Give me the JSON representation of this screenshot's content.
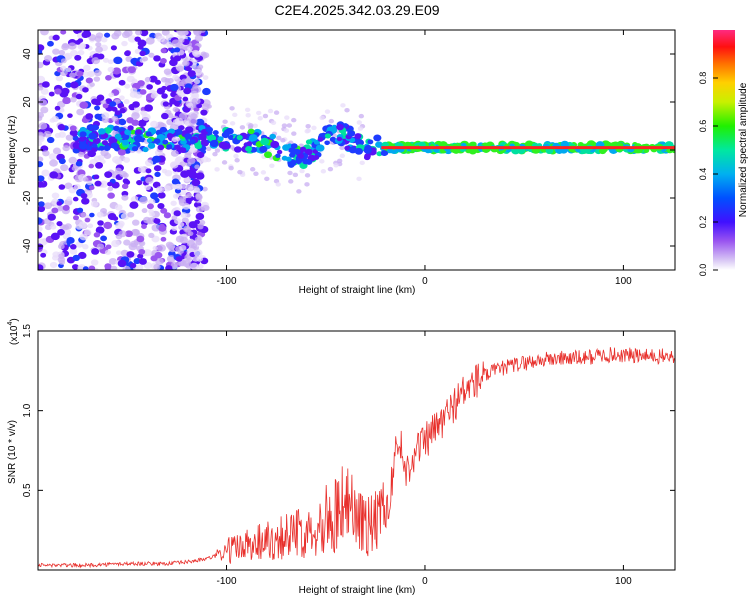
{
  "title": "C2E4.2025.342.03.29.E09",
  "chart_data": [
    {
      "type": "heatmap",
      "xlabel": "Height of straight line (km)",
      "ylabel": "Frequency (Hz)",
      "xlim": [
        -195,
        126
      ],
      "ylim": [
        -50,
        50
      ],
      "xticks": [
        -100,
        0,
        100
      ],
      "yticks": [
        -40,
        -20,
        0,
        20,
        40
      ],
      "ridge": {
        "x": [
          -170,
          -150,
          -130,
          -110,
          -95,
          -85,
          -75,
          -68,
          -62,
          -55,
          -50,
          -45,
          -40,
          -35,
          -30,
          -25,
          -20,
          -10,
          0,
          20,
          50,
          90,
          126
        ],
        "freq": [
          5,
          5,
          4,
          5,
          4,
          3,
          1,
          -2,
          -3,
          1,
          5,
          8,
          6,
          2,
          0,
          1,
          1,
          1,
          1,
          1,
          1,
          1,
          1
        ]
      },
      "colorbar": {
        "label": "Normalized spectral amplitude",
        "range": [
          0,
          1
        ],
        "ticks": [
          0.0,
          0.2,
          0.4,
          0.6,
          0.8
        ],
        "tick_labels": [
          "0.0",
          "0.2",
          "0.4",
          "0.6",
          "0.8"
        ]
      }
    },
    {
      "type": "line",
      "xlabel": "Height of straight line (km)",
      "ylabel": "SNR (10 * v/v)",
      "scale_label": "(x10",
      "scale_exp": "4",
      "scale_close": ")",
      "xlim": [
        -195,
        126
      ],
      "ylim": [
        0,
        1.5
      ],
      "xticks": [
        -100,
        0,
        100
      ],
      "yticks": [
        0.5,
        1.0,
        1.5
      ],
      "ytick_labels": [
        "0.5",
        "1.0",
        "1.5"
      ],
      "color": "#e8302c",
      "series": [
        {
          "x": [
            -195,
            -170,
            -150,
            -130,
            -120,
            -110,
            -105,
            -100,
            -95,
            -90,
            -85,
            -80,
            -75,
            -70,
            -65,
            -60,
            -55,
            -50,
            -45,
            -40,
            -35,
            -30,
            -25,
            -20,
            -18,
            -15,
            -12,
            -10,
            -5,
            0,
            5,
            10,
            15,
            20,
            25,
            30,
            40,
            50,
            60,
            70,
            80,
            90,
            100,
            110,
            126
          ],
          "y": [
            0.03,
            0.03,
            0.04,
            0.04,
            0.05,
            0.07,
            0.09,
            0.12,
            0.14,
            0.16,
            0.18,
            0.19,
            0.2,
            0.22,
            0.22,
            0.25,
            0.28,
            0.32,
            0.36,
            0.4,
            0.36,
            0.28,
            0.3,
            0.34,
            0.45,
            0.72,
            0.8,
            0.6,
            0.75,
            0.8,
            0.88,
            0.95,
            1.05,
            1.12,
            1.18,
            1.22,
            1.27,
            1.3,
            1.32,
            1.33,
            1.33,
            1.35,
            1.35,
            1.34,
            1.34
          ]
        }
      ]
    }
  ]
}
